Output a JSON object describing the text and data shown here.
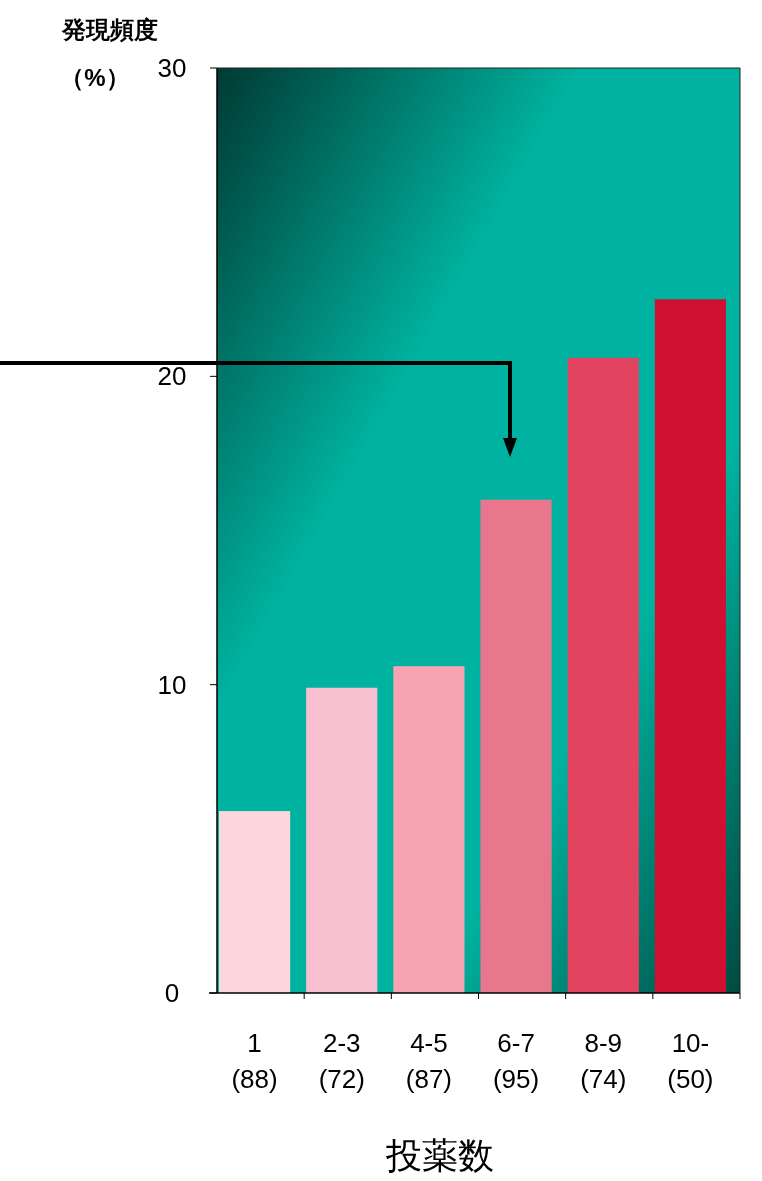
{
  "chart_data": {
    "type": "bar",
    "ylabel": "発現頻度（%）",
    "xlabel": "投薬数",
    "categories": [
      "1\n(88)",
      "2-3\n(72)",
      "4-5\n(87)",
      "6-7\n(95)",
      "8-9\n(74)",
      "10-\n(50)"
    ],
    "values": [
      5.9,
      9.9,
      10.6,
      16.0,
      20.6,
      22.5
    ],
    "colors": [
      "#fdd5dd",
      "#f9c0d2",
      "#f7a3b1",
      "#e8768c",
      "#e24460",
      "#d01030"
    ],
    "ylim": [
      0,
      30
    ],
    "yticks": [
      0,
      10,
      20,
      30
    ],
    "grid": false
  }
}
